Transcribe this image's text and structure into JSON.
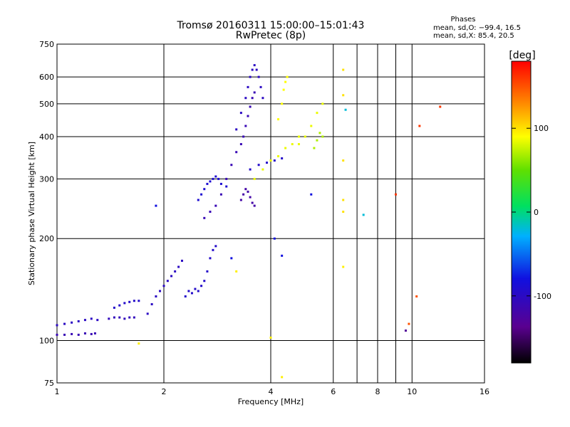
{
  "chart_data": {
    "type": "scatter",
    "title": "Tromsø 20160311 15:00:00–15:01:43",
    "subtitle": "RwPretec (8p)",
    "xlabel": "Frequency [MHz]",
    "ylabel": "Stationary phase Virtual Height [km]",
    "xscale": "log",
    "yscale": "log",
    "xlim": [
      1,
      16
    ],
    "ylim": [
      75,
      750
    ],
    "x_ticks": [
      1,
      2,
      4,
      6,
      8,
      10,
      16
    ],
    "x_minor_ticks": [
      7,
      9
    ],
    "y_ticks": [
      75,
      100,
      200,
      300,
      400,
      500,
      600,
      750
    ],
    "grid": true,
    "phase_info": {
      "title": "Phases",
      "line_o": "mean, sd,O: −99.4, 16.5",
      "line_x": "mean, sd,X:  85.4, 20.5"
    },
    "colorbar": {
      "label": "[deg]",
      "min": -180,
      "max": 180,
      "ticks": [
        100,
        0,
        -100
      ]
    },
    "series": [
      {
        "points": [
          [
            1.0,
            104
          ],
          [
            1.05,
            104
          ],
          [
            1.1,
            104.5
          ],
          [
            1.15,
            104
          ],
          [
            1.2,
            105
          ],
          [
            1.25,
            104.5
          ],
          [
            1.28,
            105
          ]
        ],
        "phase": -110
      },
      {
        "points": [
          [
            1.0,
            111
          ],
          [
            1.05,
            112
          ],
          [
            1.1,
            113
          ],
          [
            1.15,
            114
          ],
          [
            1.2,
            115
          ],
          [
            1.25,
            116
          ],
          [
            1.3,
            115
          ]
        ],
        "phase": -100
      },
      {
        "points": [
          [
            1.4,
            116
          ],
          [
            1.45,
            117
          ],
          [
            1.5,
            117
          ],
          [
            1.55,
            116
          ],
          [
            1.6,
            117
          ],
          [
            1.65,
            117
          ]
        ],
        "phase": -105
      },
      {
        "points": [
          [
            1.45,
            125
          ],
          [
            1.5,
            127
          ],
          [
            1.55,
            129
          ],
          [
            1.6,
            130
          ],
          [
            1.65,
            131
          ],
          [
            1.7,
            131
          ]
        ],
        "phase": -95
      },
      {
        "points": [
          [
            1.8,
            120
          ],
          [
            1.85,
            128
          ],
          [
            1.9,
            135
          ],
          [
            1.95,
            140
          ],
          [
            2.0,
            145
          ],
          [
            2.05,
            150
          ],
          [
            2.1,
            155
          ],
          [
            2.15,
            160
          ],
          [
            2.2,
            165
          ],
          [
            2.25,
            172
          ]
        ],
        "phase": -100
      },
      {
        "points": [
          [
            2.3,
            135
          ],
          [
            2.35,
            140
          ],
          [
            2.4,
            138
          ],
          [
            2.45,
            142
          ],
          [
            2.5,
            140
          ],
          [
            2.55,
            145
          ],
          [
            2.6,
            150
          ],
          [
            2.65,
            160
          ],
          [
            2.7,
            175
          ],
          [
            2.75,
            185
          ],
          [
            2.8,
            190
          ]
        ],
        "phase": -95
      },
      {
        "points": [
          [
            2.5,
            260
          ],
          [
            2.55,
            270
          ],
          [
            2.6,
            280
          ],
          [
            2.65,
            290
          ],
          [
            2.7,
            295
          ],
          [
            2.75,
            300
          ],
          [
            2.8,
            305
          ],
          [
            2.85,
            300
          ],
          [
            2.9,
            290
          ],
          [
            3.0,
            285
          ]
        ],
        "phase": -90
      },
      {
        "points": [
          [
            2.6,
            230
          ],
          [
            2.7,
            240
          ],
          [
            2.8,
            250
          ],
          [
            2.9,
            270
          ],
          [
            3.0,
            300
          ],
          [
            3.1,
            330
          ],
          [
            3.2,
            360
          ]
        ],
        "phase": -110
      },
      {
        "points": [
          [
            3.2,
            420
          ],
          [
            3.3,
            470
          ],
          [
            3.4,
            520
          ],
          [
            3.45,
            560
          ],
          [
            3.5,
            600
          ],
          [
            3.55,
            630
          ],
          [
            3.6,
            650
          ],
          [
            3.65,
            630
          ],
          [
            3.7,
            600
          ],
          [
            3.75,
            560
          ],
          [
            3.8,
            520
          ]
        ],
        "phase": -100
      },
      {
        "points": [
          [
            3.3,
            380
          ],
          [
            3.35,
            400
          ],
          [
            3.4,
            430
          ],
          [
            3.45,
            460
          ],
          [
            3.5,
            490
          ],
          [
            3.55,
            520
          ],
          [
            3.6,
            540
          ]
        ],
        "phase": -110
      },
      {
        "points": [
          [
            3.3,
            260
          ],
          [
            3.35,
            270
          ],
          [
            3.4,
            280
          ],
          [
            3.45,
            275
          ],
          [
            3.5,
            265
          ],
          [
            3.55,
            255
          ],
          [
            3.6,
            250
          ]
        ],
        "phase": -120
      },
      {
        "points": [
          [
            3.5,
            320
          ],
          [
            3.7,
            330
          ],
          [
            3.9,
            335
          ],
          [
            4.1,
            340
          ],
          [
            4.3,
            345
          ]
        ],
        "phase": -95
      },
      {
        "points": [
          [
            3.6,
            300
          ],
          [
            3.8,
            320
          ],
          [
            4.0,
            340
          ],
          [
            4.2,
            350
          ],
          [
            4.4,
            370
          ],
          [
            4.6,
            380
          ],
          [
            4.8,
            400
          ]
        ],
        "phase": 85
      },
      {
        "points": [
          [
            4.2,
            450
          ],
          [
            4.3,
            500
          ],
          [
            4.35,
            550
          ],
          [
            4.4,
            580
          ],
          [
            4.45,
            600
          ]
        ],
        "phase": 90
      },
      {
        "points": [
          [
            4.8,
            380
          ],
          [
            5.0,
            400
          ],
          [
            5.2,
            430
          ],
          [
            5.4,
            470
          ],
          [
            5.6,
            500
          ]
        ],
        "phase": 85
      },
      {
        "points": [
          [
            5.3,
            370
          ],
          [
            5.4,
            390
          ],
          [
            5.5,
            410
          ],
          [
            5.6,
            400
          ]
        ],
        "phase": 70
      },
      {
        "points": [
          [
            6.4,
            630
          ],
          [
            6.4,
            530
          ],
          [
            6.4,
            340
          ],
          [
            6.4,
            260
          ],
          [
            6.4,
            240
          ]
        ],
        "phase": 100
      },
      {
        "points": [
          [
            6.5,
            480
          ],
          [
            7.3,
            235
          ]
        ],
        "phase": -20
      },
      {
        "points": [
          [
            9.0,
            270
          ],
          [
            10.5,
            430
          ],
          [
            12.0,
            490
          ]
        ],
        "phase": 160
      },
      {
        "points": [
          [
            9.6,
            107
          ]
        ],
        "phase": -130
      },
      {
        "points": [
          [
            9.8,
            112
          ],
          [
            10.3,
            135
          ]
        ],
        "phase": 150
      },
      {
        "points": [
          [
            1.7,
            98
          ],
          [
            3.2,
            160
          ],
          [
            4.0,
            102
          ],
          [
            4.3,
            78
          ],
          [
            6.4,
            165
          ]
        ],
        "phase": 95
      },
      {
        "points": [
          [
            1.9,
            250
          ],
          [
            3.1,
            175
          ],
          [
            4.3,
            178
          ],
          [
            5.2,
            270
          ],
          [
            4.1,
            200
          ]
        ],
        "phase": -80
      }
    ]
  }
}
